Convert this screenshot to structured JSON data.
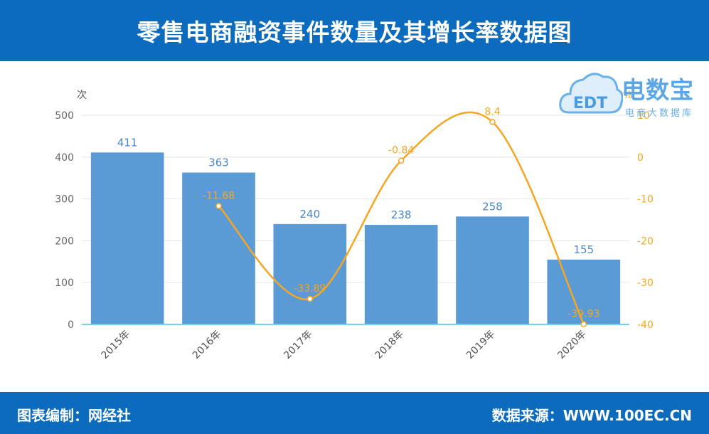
{
  "header": {
    "title": "零售电商融资事件数量及其增长率数据图"
  },
  "footer": {
    "left_text": "图表编制：网经社",
    "right_text": "数据来源：WWW.100EC.CN"
  },
  "logo": {
    "brand": "电数宝",
    "sub": "电商大数据库",
    "badge": "EDT"
  },
  "colors": {
    "bar": "#5b9bd5",
    "line": "#f5a623",
    "header": "#0d6bbd",
    "bar_label": "#4a86c5"
  },
  "chart_data": {
    "type": "bar",
    "categories": [
      "2015年",
      "2016年",
      "2017年",
      "2018年",
      "2019年",
      "2020年"
    ],
    "series": [
      {
        "name": "",
        "type": "bar",
        "axis": "left",
        "values": [
          411,
          363,
          240,
          238,
          258,
          155
        ]
      },
      {
        "name": "",
        "type": "line",
        "axis": "right",
        "values": [
          null,
          -11.68,
          -33.89,
          -0.84,
          8.4,
          -39.93
        ]
      }
    ],
    "left_axis": {
      "unit_label": "次",
      "ylim": [
        0,
        500
      ],
      "ticks": [
        0,
        100,
        200,
        300,
        400,
        500
      ]
    },
    "right_axis": {
      "unit_label": "%",
      "ylim": [
        -40,
        10
      ],
      "ticks": [
        -40,
        -30,
        -20,
        -10,
        0,
        10
      ]
    },
    "grid": true,
    "title": "",
    "xlabel": ""
  }
}
